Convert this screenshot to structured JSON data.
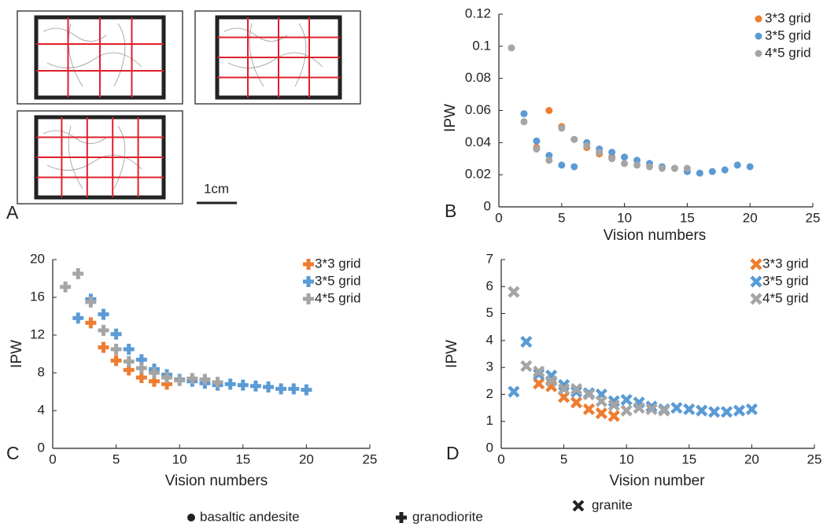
{
  "panel_a": {
    "label": "A",
    "scale_label": "1cm"
  },
  "footer_legend": [
    "basaltic andesite",
    "granodiorite",
    "granite"
  ],
  "chart_data": [
    {
      "type": "scatter",
      "panel_label": "B",
      "marker": "circle",
      "x_label": "Vision numbers",
      "y_label": "IPW",
      "xlim": [
        0,
        25
      ],
      "xticks": [
        0,
        5,
        10,
        15,
        20,
        25
      ],
      "ylim": [
        0,
        0.12
      ],
      "yticks": [
        0,
        0.02,
        0.04,
        0.06,
        0.08,
        0.1,
        0.12
      ],
      "legend": "upper right",
      "series": [
        {
          "name": "3*3 grid",
          "color": "#ed7d31",
          "x": [
            3,
            4,
            5,
            6,
            7,
            8,
            9
          ],
          "values": [
            0.037,
            0.06,
            0.05,
            0.042,
            0.037,
            0.033,
            0.031
          ]
        },
        {
          "name": "3*5 grid",
          "color": "#5b9bd5",
          "x": [
            2,
            3,
            4,
            5,
            6,
            7,
            8,
            9,
            10,
            11,
            12,
            13,
            14,
            15,
            16,
            17,
            18,
            19,
            20
          ],
          "values": [
            0.058,
            0.041,
            0.032,
            0.026,
            0.025,
            0.04,
            0.036,
            0.034,
            0.031,
            0.029,
            0.027,
            0.025,
            0.024,
            0.022,
            0.021,
            0.022,
            0.023,
            0.026,
            0.025
          ]
        },
        {
          "name": "4*5 grid",
          "color": "#a5a5a5",
          "x": [
            1,
            2,
            3,
            4,
            5,
            6,
            7,
            8,
            9,
            10,
            11,
            12,
            13,
            14,
            15
          ],
          "values": [
            0.099,
            0.053,
            0.036,
            0.029,
            0.049,
            0.042,
            0.038,
            0.034,
            0.03,
            0.027,
            0.026,
            0.025,
            0.024,
            0.024,
            0.024
          ]
        }
      ]
    },
    {
      "type": "scatter",
      "panel_label": "C",
      "marker": "plus",
      "x_label": "Vision numbers",
      "y_label": "IPW",
      "xlim": [
        0,
        25
      ],
      "xticks": [
        0,
        5,
        10,
        15,
        20,
        25
      ],
      "ylim": [
        0,
        20
      ],
      "yticks": [
        0,
        4,
        8,
        12,
        16,
        20
      ],
      "legend": "upper right",
      "series": [
        {
          "name": "3*3 grid",
          "color": "#ed7d31",
          "x": [
            3,
            4,
            5,
            6,
            7,
            8,
            9
          ],
          "values": [
            13.3,
            10.7,
            9.3,
            8.3,
            7.5,
            7.1,
            6.8
          ]
        },
        {
          "name": "3*5 grid",
          "color": "#5b9bd5",
          "x": [
            2,
            3,
            4,
            5,
            6,
            7,
            8,
            9,
            10,
            11,
            12,
            13,
            14,
            15,
            16,
            17,
            18,
            19,
            20
          ],
          "values": [
            13.8,
            15.8,
            14.2,
            12.1,
            10.5,
            9.4,
            8.4,
            7.8,
            7.3,
            7.1,
            6.9,
            6.7,
            6.8,
            6.7,
            6.6,
            6.5,
            6.3,
            6.3,
            6.2
          ]
        },
        {
          "name": "4*5 grid",
          "color": "#a5a5a5",
          "x": [
            1,
            2,
            3,
            4,
            5,
            6,
            7,
            8,
            9,
            10,
            11,
            12,
            13
          ],
          "values": [
            17.1,
            18.5,
            15.5,
            12.5,
            10.5,
            9.2,
            8.5,
            8.0,
            7.5,
            7.2,
            7.4,
            7.3,
            7.0
          ]
        }
      ]
    },
    {
      "type": "scatter",
      "panel_label": "D",
      "marker": "cross",
      "x_label": "Vision number",
      "y_label": "IPW",
      "xlim": [
        0,
        25
      ],
      "xticks": [
        0,
        5,
        10,
        15,
        20,
        25
      ],
      "ylim": [
        0,
        7
      ],
      "yticks": [
        0,
        1,
        2,
        3,
        4,
        5,
        6,
        7
      ],
      "legend": "upper right",
      "series": [
        {
          "name": "3*3 grid",
          "color": "#ed7d31",
          "x": [
            3,
            4,
            5,
            6,
            7,
            8,
            9
          ],
          "values": [
            2.4,
            2.3,
            1.9,
            1.7,
            1.45,
            1.3,
            1.2
          ]
        },
        {
          "name": "3*5 grid",
          "color": "#5b9bd5",
          "x": [
            1,
            2,
            3,
            4,
            5,
            6,
            7,
            8,
            9,
            10,
            11,
            12,
            13,
            14,
            15,
            16,
            17,
            18,
            19,
            20
          ],
          "values": [
            2.1,
            3.95,
            2.75,
            2.7,
            2.35,
            2.1,
            2.05,
            2.0,
            1.75,
            1.8,
            1.7,
            1.55,
            1.45,
            1.5,
            1.45,
            1.4,
            1.35,
            1.35,
            1.4,
            1.45
          ]
        },
        {
          "name": "4*5 grid",
          "color": "#a5a5a5",
          "x": [
            1,
            2,
            3,
            4,
            5,
            6,
            7,
            8,
            9,
            10,
            11,
            12,
            13
          ],
          "values": [
            5.8,
            3.05,
            2.85,
            2.5,
            2.2,
            2.2,
            2.0,
            1.75,
            1.6,
            1.4,
            1.5,
            1.45,
            1.4
          ]
        }
      ]
    }
  ]
}
